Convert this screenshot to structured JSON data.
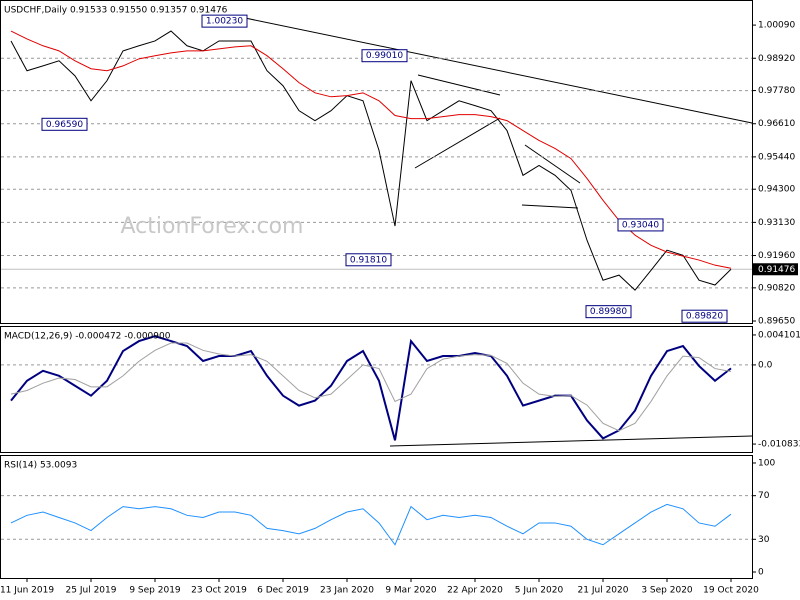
{
  "chart_data": [
    {
      "type": "line",
      "title": "USDCHF,Daily  0.91533 0.91550 0.91357 0.91476",
      "categories": [
        null,
        "11 Jun 2019",
        null,
        null,
        null,
        "25 Jul 2019",
        null,
        null,
        null,
        "9 Sep 2019",
        null,
        null,
        null,
        "23 Oct 2019",
        null,
        null,
        null,
        "6 Dec 2019",
        null,
        null,
        null,
        "23 Jan 2020",
        null,
        null,
        null,
        "9 Mar 2020",
        null,
        null,
        null,
        "22 Apr 2020",
        null,
        null,
        null,
        "5 Jun 2020",
        null,
        null,
        null,
        "21 Jul 2020",
        null,
        null,
        null,
        "3 Sep 2020",
        null,
        null,
        null,
        "19 Oct 2020"
      ],
      "series": [
        {
          "color": "#000000",
          "values": [
            0.9953,
            0.9848,
            0.9865,
            0.9883,
            0.983,
            0.9742,
            0.9813,
            0.9918,
            0.9936,
            0.9953,
            0.9988,
            0.9936,
            0.9918,
            0.9953,
            0.9953,
            0.9953,
            0.9848,
            0.9795,
            0.9707,
            0.9672,
            0.9707,
            0.976,
            0.9742,
            0.9567,
            0.93,
            0.9813,
            0.9672,
            0.9707,
            0.9742,
            0.9725,
            0.9707,
            0.9637,
            0.9479,
            0.9514,
            0.9479,
            0.9426,
            0.925,
            0.9109,
            0.9127,
            0.9074,
            0.9144,
            0.9215,
            0.9197,
            0.9109,
            0.9092,
            0.91476
          ]
        },
        {
          "color": "#e00000",
          "values": [
            0.9988,
            0.996,
            0.9936,
            0.9918,
            0.9883,
            0.9855,
            0.9848,
            0.9865,
            0.989,
            0.9901,
            0.9911,
            0.9918,
            0.9918,
            0.9925,
            0.9932,
            0.9936,
            0.9901,
            0.9855,
            0.9806,
            0.977,
            0.9756,
            0.976,
            0.977,
            0.9742,
            0.969,
            0.9679,
            0.9679,
            0.9686,
            0.9693,
            0.9693,
            0.9686,
            0.9672,
            0.9637,
            0.9602,
            0.9574,
            0.9538,
            0.9468,
            0.9391,
            0.932,
            0.9268,
            0.9232,
            0.9208,
            0.9194,
            0.918,
            0.9162,
            0.9151
          ]
        }
      ],
      "ylim": [
        0.8958,
        1.0094
      ],
      "yticks": [
        {
          "value": 0.8965,
          "label": "0.89650"
        },
        {
          "value": 0.9082,
          "label": "0.90820"
        },
        {
          "value": 0.9196,
          "label": "0.91960"
        },
        {
          "value": 0.9313,
          "label": "0.93130"
        },
        {
          "value": 0.943,
          "label": "0.94300"
        },
        {
          "value": 0.9544,
          "label": "0.95440"
        },
        {
          "value": 0.9661,
          "label": "0.96610"
        },
        {
          "value": 0.9778,
          "label": "0.97780"
        },
        {
          "value": 0.9892,
          "label": "0.98920"
        },
        {
          "value": 1.0009,
          "label": "1.00090"
        }
      ],
      "last": {
        "value": 0.91476,
        "label": "0.91476"
      },
      "annotations": [
        {
          "label": "1.00230",
          "value": 1.0023,
          "index": 15
        },
        {
          "label": "0.99010",
          "value": 0.9901,
          "index": 25
        },
        {
          "label": "0.96590",
          "value": 0.9659,
          "index": 5
        },
        {
          "label": "0.91810",
          "value": 0.9181,
          "index": 24
        },
        {
          "label": "0.93040",
          "value": 0.9304,
          "index": 41
        },
        {
          "label": "0.89980",
          "value": 0.8998,
          "index": 39
        },
        {
          "label": "0.89820",
          "value": 0.8982,
          "index": 45
        }
      ],
      "watermark": "ActionForex.com"
    },
    {
      "type": "line",
      "title": "MACD(12,26,9) -0.000472 -0.000900",
      "series": [
        {
          "color": "#000080",
          "values": [
            -0.00489,
            -0.00217,
            -0.00081,
            -0.00149,
            -0.00285,
            -0.00421,
            -0.00217,
            0.0019,
            0.00326,
            0.00394,
            0.00326,
            0.00258,
            0.00054,
            0.00122,
            0.00122,
            0.0019,
            -0.00149,
            -0.00421,
            -0.00557,
            -0.00489,
            -0.00285,
            0.00054,
            0.0019,
            -0.00217,
            -0.01032,
            0.00326,
            0.00054,
            0.00122,
            0.00122,
            0.00163,
            0.00122,
            -0.00149,
            -0.00557,
            -0.00489,
            -0.00421,
            -0.00421,
            -0.0076,
            -0.01005,
            -0.00896,
            -0.00625,
            -0.00149,
            0.0019,
            0.00258,
            -0.00014,
            -0.00217,
            -0.000472
          ]
        },
        {
          "color": "#a0a0a0",
          "values": [
            -0.004,
            -0.0035,
            -0.0025,
            -0.0018,
            -0.002,
            -0.003,
            -0.003,
            -0.0015,
            0.0005,
            0.002,
            0.003,
            0.003,
            0.002,
            0.0015,
            0.0012,
            0.0014,
            0.0005,
            -0.0015,
            -0.0035,
            -0.0045,
            -0.004,
            -0.002,
            0.0,
            -0.0005,
            -0.005,
            -0.004,
            -0.0005,
            0.0008,
            0.0012,
            0.0014,
            0.0013,
            0.0002,
            -0.0025,
            -0.004,
            -0.0043,
            -0.0042,
            -0.0055,
            -0.008,
            -0.009,
            -0.008,
            -0.005,
            -0.0015,
            0.0012,
            0.001,
            -0.0005,
            -0.0009
          ]
        }
      ],
      "ylim": [
        -0.01192,
        0.00519
      ],
      "yticks": [
        -0.010833,
        {
          "value": 0,
          "label": "0.0"
        },
        0.004101
      ]
    },
    {
      "type": "line",
      "title": "RSI(14) 53.0093",
      "series": [
        {
          "color": "#1e90ff",
          "values": [
            45,
            52,
            55,
            50,
            45,
            38,
            50,
            60,
            58,
            60,
            58,
            52,
            50,
            55,
            55,
            52,
            40,
            38,
            35,
            40,
            48,
            55,
            58,
            45,
            25,
            60,
            48,
            52,
            50,
            52,
            50,
            42,
            35,
            45,
            45,
            42,
            30,
            25,
            35,
            45,
            55,
            62,
            58,
            45,
            42,
            53.0093
          ]
        }
      ],
      "ylim": [
        -5.5,
        106.4
      ],
      "yticks": [
        0,
        30,
        70,
        100
      ]
    }
  ]
}
